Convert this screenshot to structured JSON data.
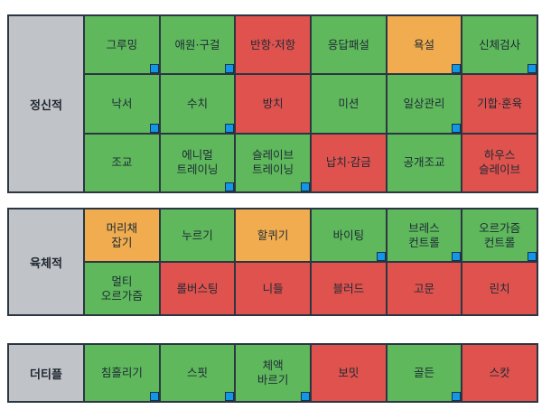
{
  "colors": {
    "green": "#5fb85c",
    "red": "#df524d",
    "orange": "#f0ac4e",
    "marker": "#1296e6",
    "label_bg": "#c0c3c7"
  },
  "groups": [
    {
      "label": "정신적",
      "cells": [
        {
          "text": "그루밍",
          "color": "g",
          "marked": true
        },
        {
          "text": "애원·구걸",
          "color": "g",
          "marked": true
        },
        {
          "text": "반항·저항",
          "color": "r",
          "marked": false
        },
        {
          "text": "응답패설",
          "color": "g",
          "marked": false
        },
        {
          "text": "욕설",
          "color": "o",
          "marked": true
        },
        {
          "text": "신체검사",
          "color": "g",
          "marked": true
        },
        {
          "text": "낙서",
          "color": "g",
          "marked": true
        },
        {
          "text": "수치",
          "color": "g",
          "marked": true
        },
        {
          "text": "방치",
          "color": "r",
          "marked": false
        },
        {
          "text": "미션",
          "color": "g",
          "marked": false
        },
        {
          "text": "일상관리",
          "color": "g",
          "marked": true
        },
        {
          "text": "기합·훈육",
          "color": "r",
          "marked": false
        },
        {
          "text": "조교",
          "color": "g",
          "marked": false
        },
        {
          "text": "에니멀\n트레이닝",
          "color": "g",
          "marked": true
        },
        {
          "text": "슬레이브\n트레이닝",
          "color": "g",
          "marked": true
        },
        {
          "text": "납치·감금",
          "color": "r",
          "marked": false
        },
        {
          "text": "공개조교",
          "color": "g",
          "marked": false
        },
        {
          "text": "하우스\n슬레이브",
          "color": "r",
          "marked": false
        }
      ]
    },
    {
      "label": "육체적",
      "cells": [
        {
          "text": "머리채\n잡기",
          "color": "o",
          "marked": false
        },
        {
          "text": "누르기",
          "color": "g",
          "marked": false
        },
        {
          "text": "할퀴기",
          "color": "o",
          "marked": false
        },
        {
          "text": "바이팅",
          "color": "g",
          "marked": true
        },
        {
          "text": "브레스\n컨트롤",
          "color": "g",
          "marked": true
        },
        {
          "text": "오르가즘\n컨트롤",
          "color": "g",
          "marked": true
        },
        {
          "text": "멀티\n오르가즘",
          "color": "g",
          "marked": false
        },
        {
          "text": "롤버스팅",
          "color": "r",
          "marked": false
        },
        {
          "text": "니들",
          "color": "r",
          "marked": false
        },
        {
          "text": "블러드",
          "color": "r",
          "marked": false
        },
        {
          "text": "고문",
          "color": "r",
          "marked": false
        },
        {
          "text": "린치",
          "color": "r",
          "marked": false
        }
      ]
    },
    {
      "label": "더티플",
      "cells": [
        {
          "text": "침흘리기",
          "color": "g",
          "marked": true
        },
        {
          "text": "스핏",
          "color": "g",
          "marked": true
        },
        {
          "text": "체액\n바르기",
          "color": "g",
          "marked": true
        },
        {
          "text": "보밋",
          "color": "r",
          "marked": false
        },
        {
          "text": "골든",
          "color": "g",
          "marked": true
        },
        {
          "text": "스캇",
          "color": "r",
          "marked": false
        }
      ]
    }
  ]
}
